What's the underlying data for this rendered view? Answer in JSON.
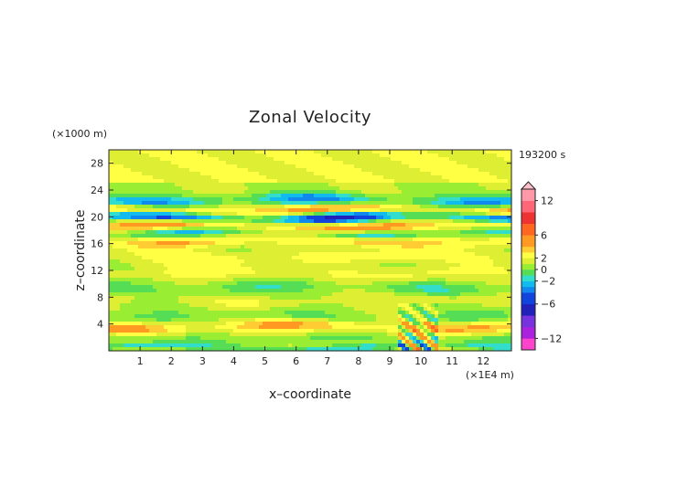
{
  "chart_data": {
    "type": "heatmap",
    "title": "Zonal Velocity",
    "time_label": "193200 s",
    "xlabel": "x–coordinate",
    "ylabel": "z–coordinate",
    "x_unit": "(×1E4 m)",
    "y_unit": "(×1000 m)",
    "xlim": [
      0,
      12.9
    ],
    "ylim": [
      0,
      30
    ],
    "x_ticks": [
      "1",
      "2",
      "3",
      "4",
      "5",
      "6",
      "7",
      "8",
      "9",
      "10",
      "11",
      "12"
    ],
    "y_ticks": [
      "4",
      "8",
      "12",
      "16",
      "20",
      "24",
      "28"
    ],
    "x_tick_values": [
      1,
      2,
      3,
      4,
      5,
      6,
      7,
      8,
      9,
      10,
      11,
      12
    ],
    "y_tick_values": [
      4,
      8,
      12,
      16,
      20,
      24,
      28
    ],
    "grid": false,
    "colorbar": {
      "labels": [
        "12",
        "6",
        "2",
        "0",
        "−2",
        "−6",
        "−12"
      ],
      "label_values": [
        12,
        6,
        2,
        0,
        -2,
        -6,
        -12
      ],
      "levels": [
        -14,
        -12,
        -10,
        -8,
        -6,
        -4,
        -3,
        -2,
        -1,
        0,
        1,
        2,
        3,
        4,
        6,
        8,
        10,
        12,
        14
      ],
      "colors": [
        "#ff44cc",
        "#aa22dd",
        "#7733dd",
        "#2222bb",
        "#1144dd",
        "#1188ee",
        "#11bbee",
        "#33ddcc",
        "#55dd55",
        "#99ee33",
        "#ddee33",
        "#ffff44",
        "#ffcc33",
        "#ff9922",
        "#ff6622",
        "#ee3333",
        "#ff6677",
        "#ff99aa"
      ]
    },
    "bands": [
      {
        "z": 22.4,
        "amp": -4.0,
        "width": 0.9
      },
      {
        "z": 21.0,
        "amp": 4.5,
        "width": 0.8
      },
      {
        "z": 19.9,
        "amp": -6.5,
        "width": 0.8
      },
      {
        "z": 18.6,
        "amp": 4.5,
        "width": 0.8
      },
      {
        "z": 17.6,
        "amp": -3.0,
        "width": 0.7
      },
      {
        "z": 16.4,
        "amp": 3.0,
        "width": 0.8
      },
      {
        "z": 14.0,
        "amp": 1.8,
        "width": 1.2
      },
      {
        "z": 11.5,
        "amp": 1.6,
        "width": 1.0
      },
      {
        "z": 9.5,
        "amp": -1.5,
        "width": 1.0
      },
      {
        "z": 7.5,
        "amp": 1.0,
        "width": 0.8
      },
      {
        "z": 5.0,
        "amp": -1.2,
        "width": 0.9
      },
      {
        "z": 3.6,
        "amp": 3.5,
        "width": 0.9
      },
      {
        "z": 1.8,
        "amp": -1.0,
        "width": 0.6
      },
      {
        "z": 0.5,
        "amp": -2.5,
        "width": 0.5
      }
    ]
  }
}
